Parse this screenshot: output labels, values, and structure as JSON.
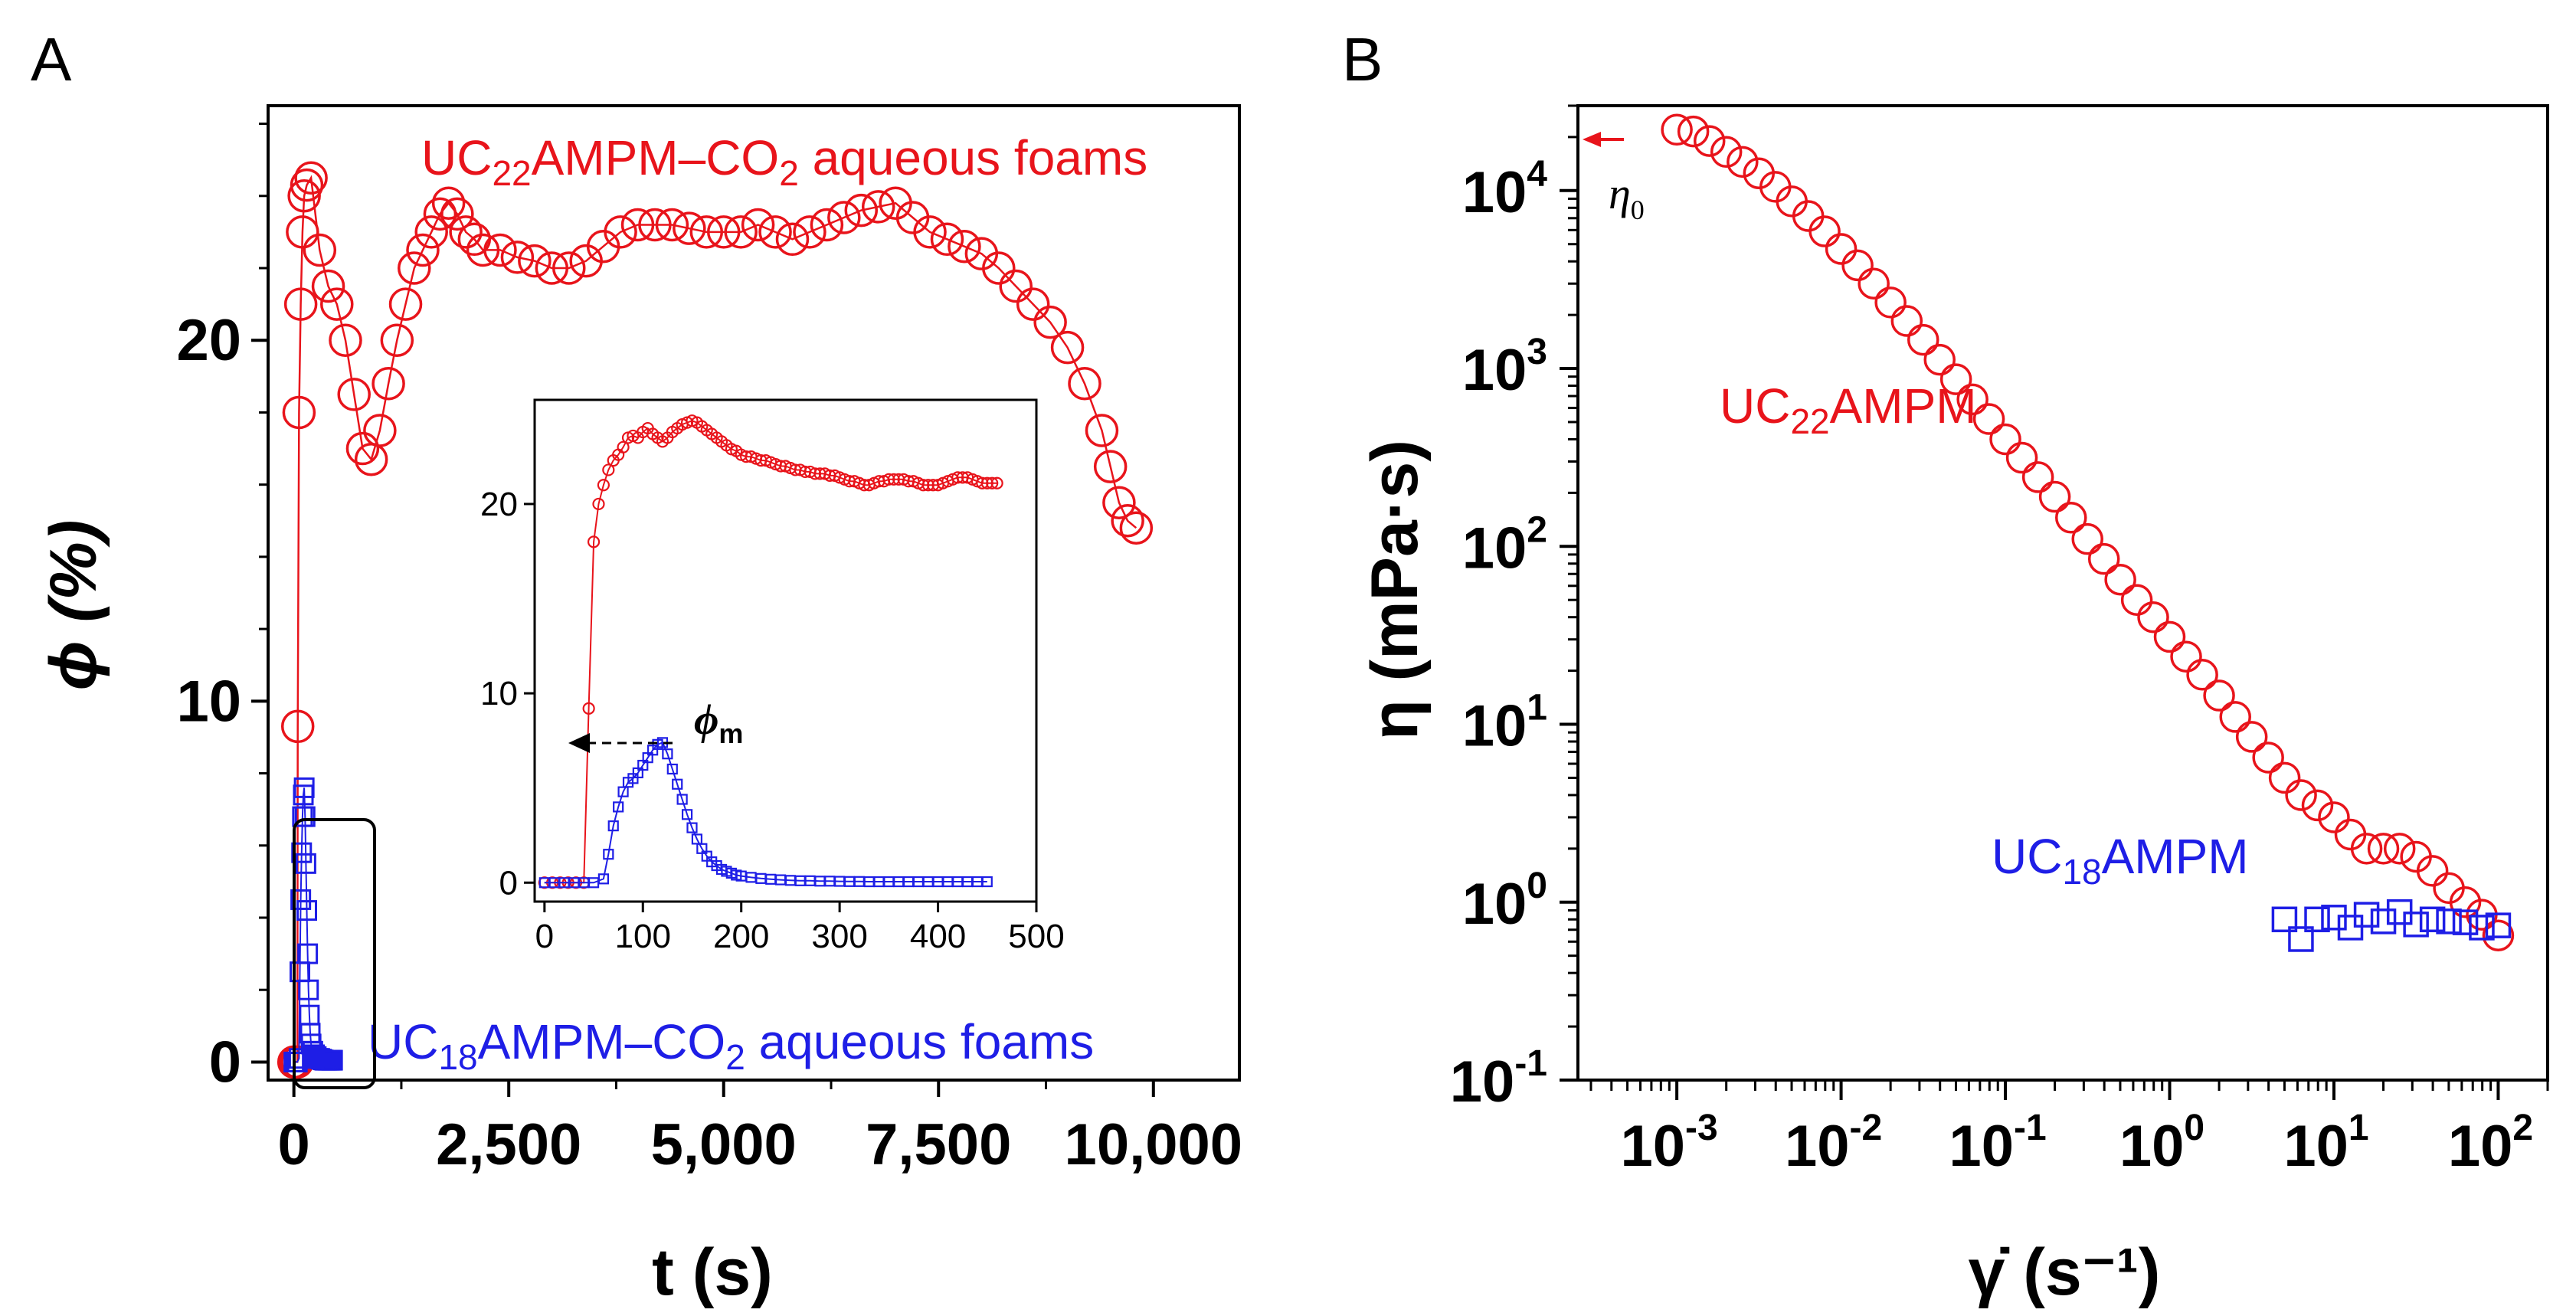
{
  "colors": {
    "red": "#e8141b",
    "blue": "#1e1ee6"
  },
  "chart_data": [
    {
      "panel": "A",
      "type": "scatter",
      "xlabel": "t (s)",
      "ylabel": "ϕ (%)",
      "xlim": [
        -300,
        11000
      ],
      "ylim": [
        -0.5,
        26.5
      ],
      "xticks": [
        0,
        2500,
        5000,
        7500,
        10000
      ],
      "xtick_labels": [
        "0",
        "2,500",
        "5,000",
        "7,500",
        "10,000"
      ],
      "yticks": [
        0,
        10,
        20
      ],
      "ytick_labels": [
        "0",
        "10",
        "20"
      ],
      "annotations": {
        "red_prefix": "UC",
        "red_sub": "22",
        "red_mid": "AMPM–CO",
        "red_sub2": "2",
        "red_suffix": " aqueous foams",
        "blue_prefix": "UC",
        "blue_sub": "18",
        "blue_mid": "AMPM–CO",
        "blue_sub2": "2",
        "blue_suffix": " aqueous foams"
      },
      "series": [
        {
          "name": "UC22AMPM–CO2 aqueous foams",
          "color": "#e8141b",
          "marker": "circle",
          "x": [
            0,
            20,
            40,
            45,
            60,
            80,
            100,
            120,
            150,
            200,
            300,
            400,
            500,
            600,
            700,
            800,
            900,
            1000,
            1100,
            1200,
            1300,
            1400,
            1500,
            1600,
            1700,
            1800,
            1900,
            2000,
            2100,
            2200,
            2400,
            2600,
            2800,
            3000,
            3200,
            3400,
            3600,
            3800,
            4000,
            4200,
            4400,
            4600,
            4800,
            5000,
            5200,
            5400,
            5600,
            5800,
            6000,
            6200,
            6400,
            6600,
            6800,
            7000,
            7200,
            7400,
            7600,
            7800,
            8000,
            8200,
            8400,
            8600,
            8800,
            9000,
            9200,
            9400,
            9500,
            9600,
            9700,
            9800
          ],
          "y": [
            0,
            0,
            0,
            9.3,
            18,
            21,
            23,
            24,
            24.3,
            24.5,
            22.5,
            21.5,
            21,
            20,
            18.5,
            17,
            16.7,
            17.5,
            18.8,
            20,
            21,
            22,
            22.5,
            23,
            23.5,
            23.8,
            23.5,
            23,
            22.8,
            22.5,
            22.5,
            22.3,
            22.2,
            22,
            22,
            22.2,
            22.6,
            23,
            23.2,
            23.2,
            23.2,
            23.1,
            23,
            23,
            23,
            23.2,
            23,
            22.8,
            23,
            23.2,
            23.4,
            23.6,
            23.7,
            23.8,
            23.4,
            23,
            22.8,
            22.6,
            22.4,
            22,
            21.5,
            21,
            20.5,
            19.8,
            18.8,
            17.5,
            16.5,
            15.5,
            15,
            14.8
          ]
        },
        {
          "name": "UC18AMPM–CO2 aqueous foams",
          "color": "#1e1ee6",
          "marker": "square",
          "x": [
            0,
            20,
            40,
            60,
            70,
            80,
            90,
            100,
            110,
            120,
            130,
            140,
            150,
            160,
            170,
            180,
            190,
            200,
            220,
            240,
            260,
            280,
            300,
            320,
            340,
            360,
            380,
            400,
            420,
            440,
            450
          ],
          "y": [
            0,
            0,
            0,
            0.1,
            2.5,
            4.5,
            5.8,
            6.8,
            7.4,
            7.6,
            6.8,
            5.5,
            4.2,
            3,
            2,
            1.3,
            0.8,
            0.5,
            0.3,
            0.2,
            0.15,
            0.1,
            0.1,
            0.08,
            0.06,
            0.05,
            0.05,
            0.05,
            0.05,
            0.05,
            0.05
          ]
        }
      ],
      "inset": {
        "type": "scatter",
        "xlim": [
          -10,
          500
        ],
        "ylim": [
          -1,
          25.5
        ],
        "xticks": [
          0,
          100,
          200,
          300,
          400,
          500
        ],
        "xtick_labels": [
          "0",
          "100",
          "200",
          "300",
          "400",
          "500"
        ],
        "yticks": [
          0,
          10,
          20
        ],
        "ytick_labels": [
          "0",
          "10",
          "20"
        ],
        "annotation": "ϕ",
        "annotation_sub": "m",
        "series": [
          {
            "name": "UC22AMPM–CO2",
            "color": "#e8141b",
            "marker": "circle",
            "x": [
              0,
              8,
              16,
              24,
              32,
              40,
              45,
              50,
              55,
              60,
              65,
              70,
              75,
              80,
              85,
              90,
              95,
              100,
              105,
              110,
              115,
              120,
              125,
              130,
              135,
              140,
              145,
              150,
              155,
              160,
              165,
              170,
              175,
              180,
              185,
              190,
              195,
              200,
              205,
              210,
              215,
              220,
              225,
              230,
              235,
              240,
              245,
              250,
              255,
              260,
              265,
              270,
              275,
              280,
              285,
              290,
              295,
              300,
              305,
              310,
              315,
              320,
              325,
              330,
              335,
              340,
              345,
              350,
              355,
              360,
              365,
              370,
              375,
              380,
              385,
              390,
              395,
              400,
              405,
              410,
              415,
              420,
              425,
              430,
              435,
              440,
              445,
              450,
              455,
              460
            ],
            "y": [
              0,
              0,
              0,
              0,
              0,
              0,
              9.2,
              18,
              20,
              21,
              21.8,
              22.3,
              22.6,
              23,
              23.5,
              23.6,
              23.5,
              23.8,
              24,
              23.7,
              23.5,
              23.3,
              23.5,
              23.8,
              24,
              24.2,
              24.3,
              24.4,
              24.3,
              24.1,
              23.9,
              23.7,
              23.5,
              23.3,
              23.1,
              22.9,
              22.8,
              22.6,
              22.5,
              22.5,
              22.4,
              22.3,
              22.3,
              22.2,
              22.1,
              22,
              22,
              21.9,
              21.8,
              21.8,
              21.7,
              21.7,
              21.6,
              21.6,
              21.6,
              21.5,
              21.5,
              21.4,
              21.3,
              21.2,
              21.2,
              21.1,
              21,
              21,
              21.1,
              21.2,
              21.2,
              21.3,
              21.3,
              21.3,
              21.3,
              21.2,
              21.2,
              21.1,
              21,
              21,
              21,
              21,
              21.1,
              21.2,
              21.3,
              21.4,
              21.4,
              21.4,
              21.3,
              21.2,
              21.1,
              21.1,
              21.1,
              21.1
            ]
          },
          {
            "name": "UC18AMPM–CO2",
            "color": "#1e1ee6",
            "marker": "square",
            "x": [
              0,
              10,
              20,
              30,
              40,
              50,
              60,
              65,
              70,
              75,
              80,
              85,
              90,
              95,
              100,
              105,
              110,
              115,
              120,
              125,
              130,
              135,
              140,
              145,
              150,
              155,
              160,
              165,
              170,
              175,
              180,
              185,
              190,
              195,
              200,
              210,
              220,
              230,
              240,
              250,
              260,
              270,
              280,
              290,
              300,
              310,
              320,
              330,
              340,
              350,
              360,
              370,
              380,
              390,
              400,
              410,
              420,
              430,
              440,
              450
            ],
            "y": [
              0,
              0,
              0,
              0,
              0,
              0,
              0.2,
              1.5,
              3,
              4,
              4.8,
              5.3,
              5.5,
              5.8,
              6.2,
              6.6,
              7,
              7.3,
              7.4,
              6.8,
              6,
              5.2,
              4.4,
              3.6,
              2.9,
              2.3,
              1.8,
              1.4,
              1.1,
              0.9,
              0.7,
              0.6,
              0.5,
              0.4,
              0.35,
              0.28,
              0.22,
              0.18,
              0.15,
              0.12,
              0.1,
              0.1,
              0.08,
              0.08,
              0.07,
              0.06,
              0.06,
              0.05,
              0.05,
              0.05,
              0.05,
              0.05,
              0.05,
              0.05,
              0.05,
              0.05,
              0.05,
              0.05,
              0.05,
              0.05
            ]
          }
        ]
      }
    },
    {
      "panel": "B",
      "type": "scatter",
      "xscale": "log",
      "yscale": "log",
      "xlabel": "γ̇ (s⁻¹)",
      "ylabel": "η (mPa·s)",
      "xlim": [
        0.00025,
        200
      ],
      "ylim": [
        0.1,
        30000
      ],
      "xtick_exponents": [
        "-3",
        "-2",
        "-1",
        "0",
        "1",
        "2"
      ],
      "ytick_exponents": [
        "-1",
        "0",
        "1",
        "2",
        "3",
        "4"
      ],
      "tick_base": "10",
      "annotations": {
        "eta0": "η",
        "eta0_sub": "0",
        "red_prefix": "UC",
        "red_sub": "22",
        "red_suffix": "AMPM",
        "blue_prefix": "UC",
        "blue_sub": "18",
        "blue_suffix": "AMPM"
      },
      "series": [
        {
          "name": "UC22AMPM",
          "color": "#e8141b",
          "marker": "circle",
          "x": [
            0.001,
            0.00126,
            0.00158,
            0.002,
            0.00251,
            0.00316,
            0.00398,
            0.00501,
            0.00631,
            0.00794,
            0.01,
            0.0126,
            0.0158,
            0.02,
            0.0251,
            0.0316,
            0.0398,
            0.0501,
            0.0631,
            0.0794,
            0.1,
            0.126,
            0.158,
            0.2,
            0.251,
            0.316,
            0.398,
            0.501,
            0.631,
            0.794,
            1,
            1.26,
            1.58,
            2,
            2.51,
            3.16,
            3.98,
            5.01,
            6.31,
            7.94,
            10,
            12.6,
            15.8,
            20,
            25.1,
            31.6,
            39.8,
            50.1,
            63.1,
            79.4,
            100
          ],
          "y": [
            22000,
            21500,
            19000,
            16500,
            14500,
            12500,
            10500,
            8700,
            7200,
            5900,
            4700,
            3800,
            3000,
            2350,
            1850,
            1450,
            1120,
            870,
            670,
            520,
            400,
            315,
            245,
            190,
            145,
            110,
            85,
            65,
            50,
            40,
            31,
            24,
            19,
            14.5,
            11,
            8.5,
            6.5,
            5,
            4,
            3.5,
            3,
            2.4,
            2,
            2,
            2,
            1.8,
            1.5,
            1.2,
            1,
            0.85,
            0.65
          ]
        },
        {
          "name": "UC18AMPM",
          "color": "#1e1ee6",
          "marker": "square",
          "x": [
            5,
            6.3,
            7.9,
            10,
            12.6,
            15.8,
            20,
            25.1,
            31.6,
            39.8,
            50.1,
            63.1,
            79.4,
            100
          ],
          "y": [
            0.8,
            0.62,
            0.8,
            0.82,
            0.72,
            0.85,
            0.78,
            0.88,
            0.75,
            0.8,
            0.78,
            0.77,
            0.72,
            0.74
          ]
        }
      ]
    }
  ]
}
